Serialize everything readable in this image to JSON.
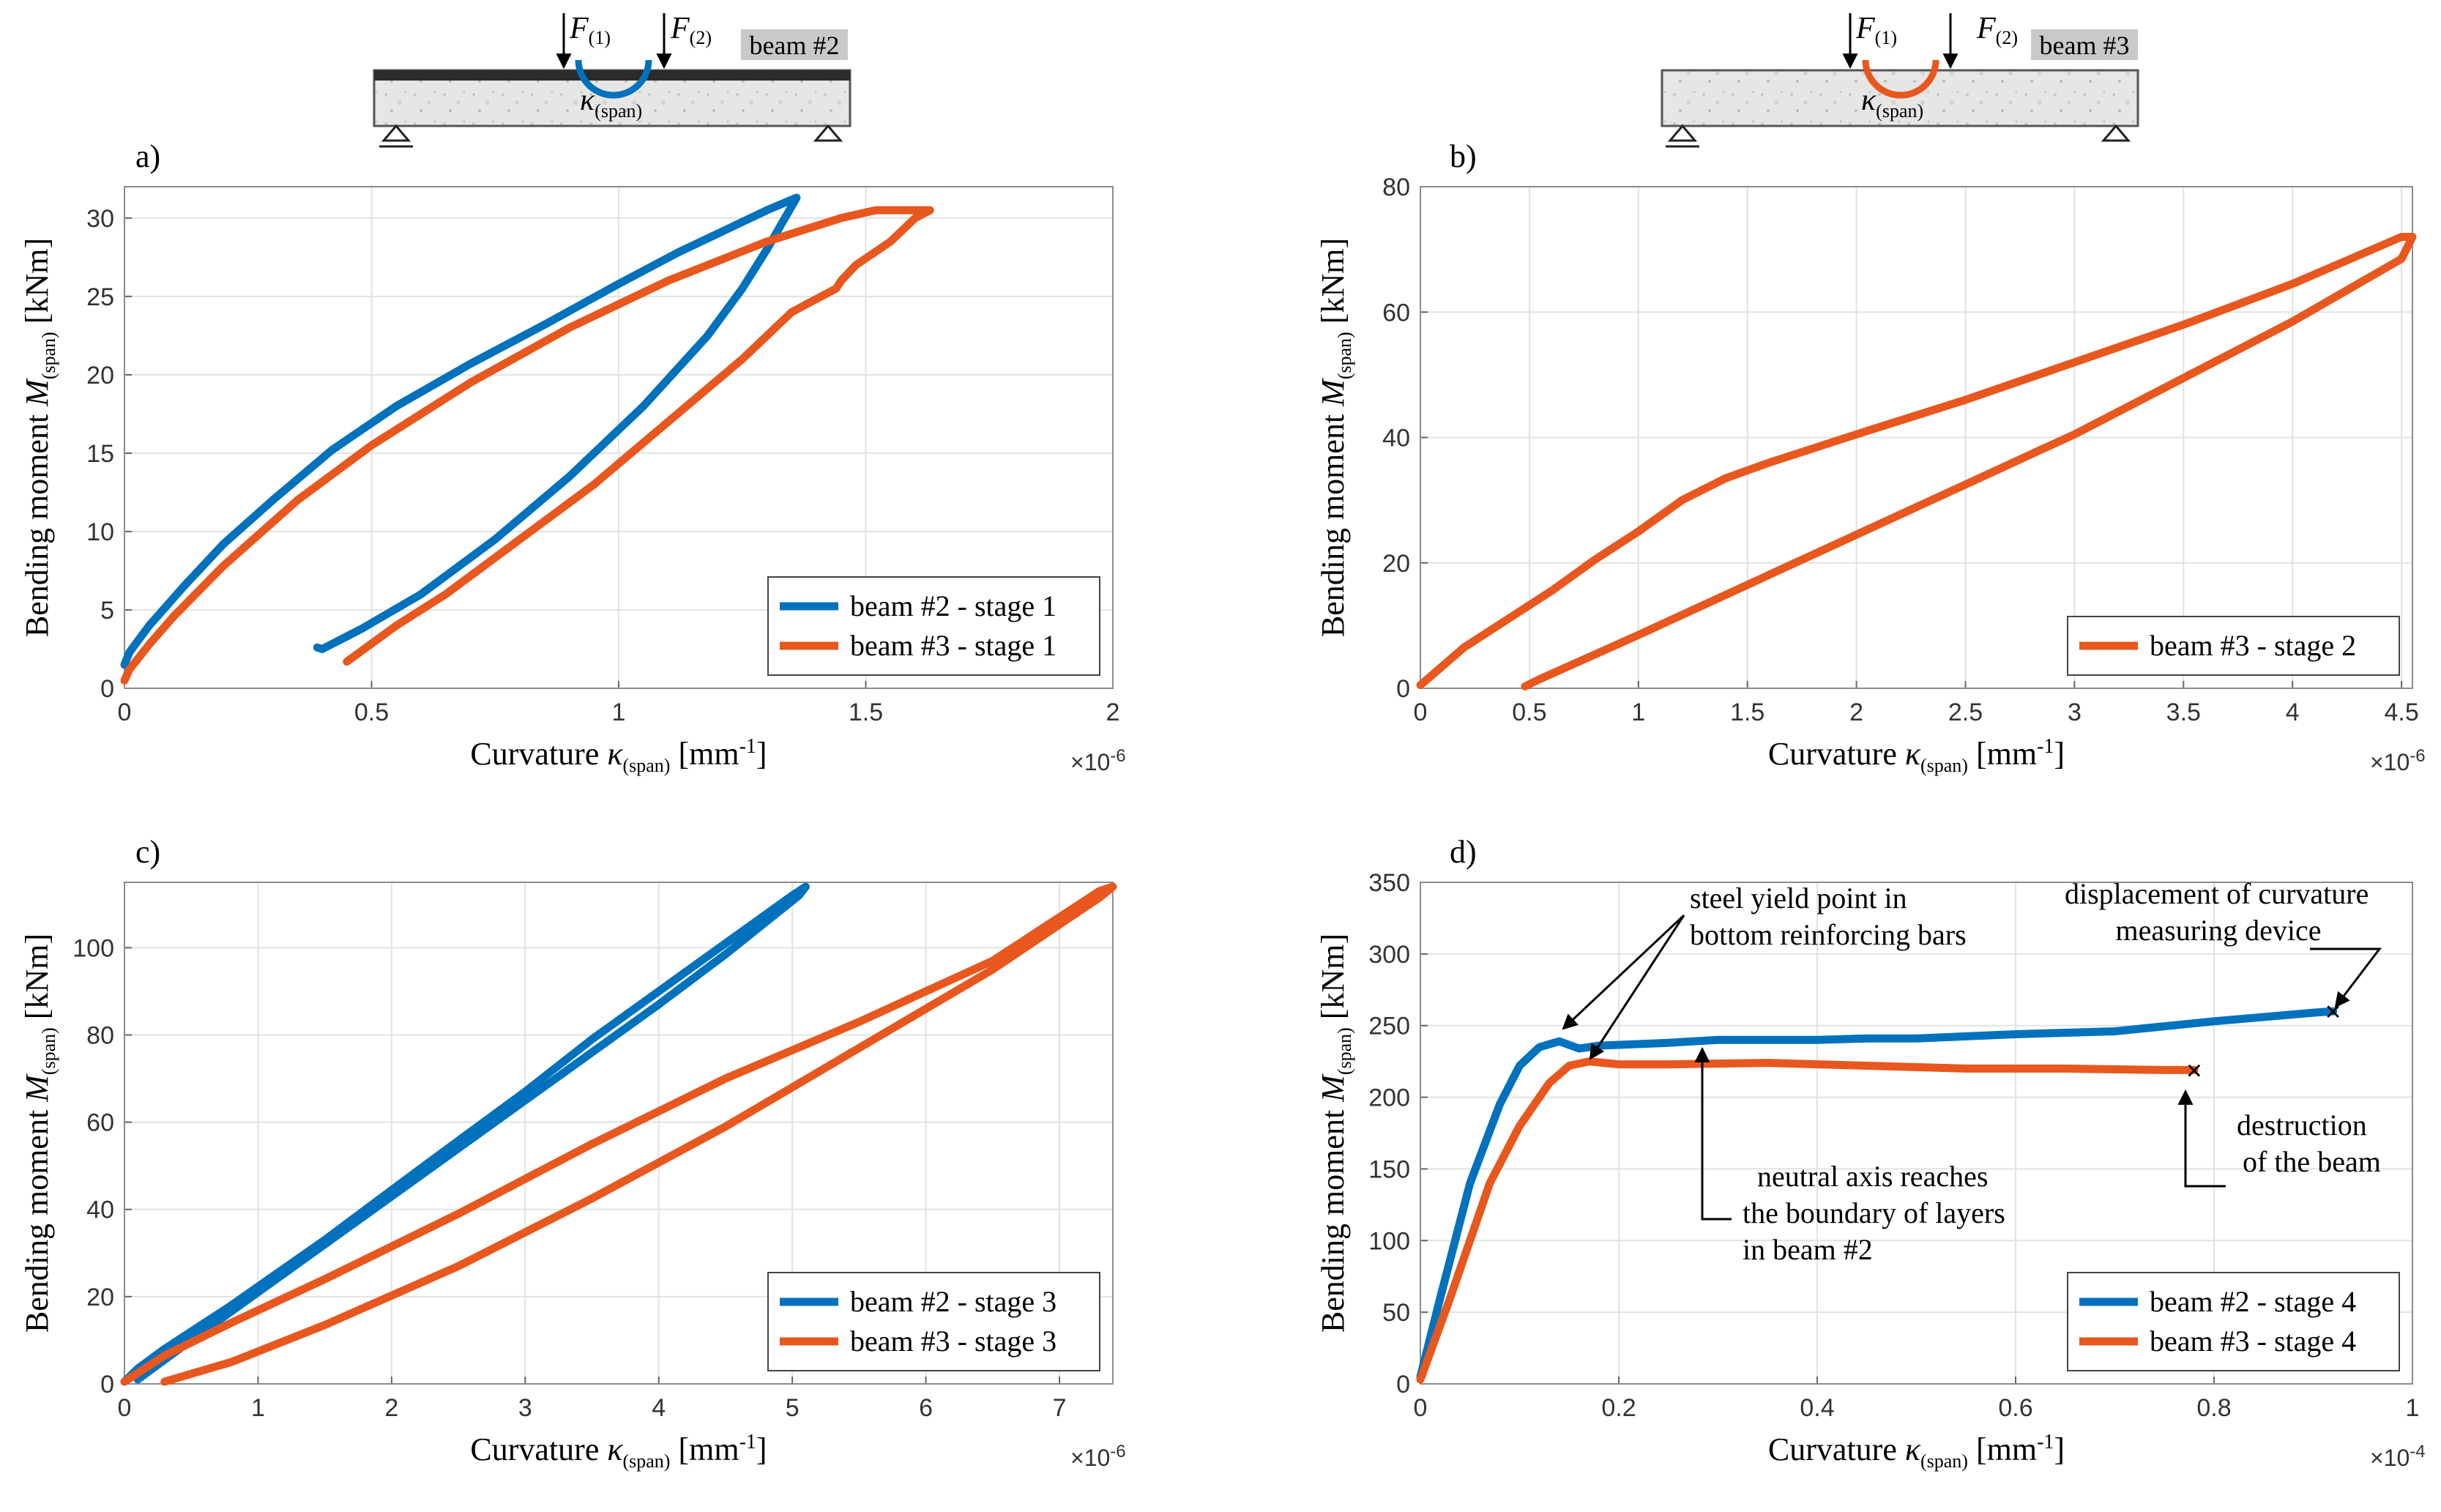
{
  "figure": {
    "beam_schematics": [
      {
        "label": "beam #2",
        "force1": "F",
        "force1_sub": "(1)",
        "force2": "F",
        "force2_sub": "(2)",
        "curv": "κ",
        "curv_sub": "(span)",
        "color": "#0072BD"
      },
      {
        "label": "beam #3",
        "force1": "F",
        "force1_sub": "(1)",
        "force2": "F",
        "force2_sub": "(2)",
        "curv": "κ",
        "curv_sub": "(span)",
        "color": "#E8571E"
      }
    ],
    "axis_text": {
      "ylabel_main": "Bending moment ",
      "ylabel_sym": "M",
      "ylabel_sub": "(span)",
      "ylabel_unit": " [kNm]",
      "xlabel_main": "Curvature ",
      "xlabel_sym": "κ",
      "xlabel_sub": "(span)",
      "xlabel_unit": " [mm",
      "xlabel_exp": "-1",
      "xlabel_close": "]"
    }
  },
  "colors": {
    "beam2": "#0072BD",
    "beam3": "#E8571E"
  },
  "chart_data": [
    {
      "type": "line",
      "panel": "a)",
      "xlim": [
        0,
        2
      ],
      "ylim": [
        0,
        32
      ],
      "xticks": [
        0,
        0.5,
        1,
        1.5,
        2
      ],
      "xtick_labels": [
        "0",
        "0.5",
        "1",
        "1.5",
        "2"
      ],
      "yticks": [
        0,
        5,
        10,
        15,
        20,
        25,
        30
      ],
      "ytick_labels": [
        "0",
        "5",
        "10",
        "15",
        "20",
        "25",
        "30"
      ],
      "x_exponent": "×10",
      "x_exponent_power": "-6",
      "grid": true,
      "legend_location": "bottom-right",
      "series": [
        {
          "name": "beam #2 - stage 1",
          "color": "#0072BD",
          "x": [
            0.0,
            0.01,
            0.05,
            0.12,
            0.2,
            0.3,
            0.42,
            0.55,
            0.7,
            0.85,
            1.0,
            1.12,
            1.22,
            1.3,
            1.36,
            1.36,
            1.3,
            1.25,
            1.18,
            1.05,
            0.9,
            0.75,
            0.6,
            0.48,
            0.4,
            0.39
          ],
          "y": [
            1.5,
            2.3,
            4.0,
            6.5,
            9.2,
            12.0,
            15.2,
            18.0,
            20.7,
            23.2,
            25.8,
            27.8,
            29.3,
            30.5,
            31.3,
            31.3,
            28.0,
            25.5,
            22.5,
            18.0,
            13.5,
            9.5,
            6.0,
            3.8,
            2.5,
            2.6
          ]
        },
        {
          "name": "beam #3 - stage 1",
          "color": "#E8571E",
          "x": [
            0.0,
            0.01,
            0.05,
            0.1,
            0.2,
            0.35,
            0.5,
            0.7,
            0.9,
            1.1,
            1.3,
            1.45,
            1.52,
            1.63,
            1.6,
            1.55,
            1.48,
            1.45,
            1.44,
            1.38,
            1.35,
            1.25,
            1.1,
            0.95,
            0.8,
            0.65,
            0.55,
            0.45
          ],
          "y": [
            0.5,
            1.2,
            2.8,
            4.6,
            7.8,
            12.0,
            15.5,
            19.5,
            23.0,
            26.0,
            28.5,
            30.0,
            30.5,
            30.5,
            30.0,
            28.5,
            27.0,
            26.0,
            25.5,
            24.5,
            24.0,
            21.0,
            17.0,
            13.0,
            9.5,
            6.0,
            4.0,
            1.7
          ]
        }
      ]
    },
    {
      "type": "line",
      "panel": "b)",
      "xlim": [
        0,
        4.55
      ],
      "ylim": [
        0,
        80
      ],
      "xticks": [
        0,
        0.5,
        1,
        1.5,
        2,
        2.5,
        3,
        3.5,
        4,
        4.5
      ],
      "xtick_labels": [
        "0",
        "0.5",
        "1",
        "1.5",
        "2",
        "2.5",
        "3",
        "3.5",
        "4",
        "4.5"
      ],
      "yticks": [
        0,
        20,
        40,
        60,
        80
      ],
      "ytick_labels": [
        "0",
        "20",
        "40",
        "60",
        "80"
      ],
      "x_exponent": "×10",
      "x_exponent_power": "-6",
      "grid": true,
      "legend_location": "bottom-right",
      "series": [
        {
          "name": "beam #3 - stage 2",
          "color": "#E8571E",
          "x": [
            0.0,
            0.05,
            0.2,
            0.4,
            0.6,
            0.8,
            1.0,
            1.2,
            1.4,
            1.6,
            2.0,
            2.5,
            3.0,
            3.5,
            4.0,
            4.5,
            4.55,
            4.5,
            4.0,
            3.5,
            3.0,
            2.5,
            2.0,
            1.5,
            1.0,
            0.55,
            0.48
          ],
          "y": [
            0.5,
            2.0,
            6.5,
            11.0,
            15.5,
            20.5,
            25.0,
            30.0,
            33.5,
            36.0,
            40.5,
            46.0,
            52.0,
            58.0,
            64.5,
            72.0,
            72.0,
            68.5,
            58.5,
            49.5,
            40.5,
            32.5,
            24.5,
            16.5,
            8.5,
            1.5,
            0.3
          ]
        }
      ]
    },
    {
      "type": "line",
      "panel": "c)",
      "xlim": [
        0,
        7.4
      ],
      "ylim": [
        0,
        115
      ],
      "xticks": [
        0,
        1,
        2,
        3,
        4,
        5,
        6,
        7
      ],
      "xtick_labels": [
        "0",
        "1",
        "2",
        "3",
        "4",
        "5",
        "6",
        "7"
      ],
      "yticks": [
        0,
        20,
        40,
        60,
        80,
        100
      ],
      "ytick_labels": [
        "0",
        "20",
        "40",
        "60",
        "80",
        "100"
      ],
      "x_exponent": "×10",
      "x_exponent_power": "-6",
      "grid": true,
      "legend_location": "bottom-right",
      "series": [
        {
          "name": "beam #2 - stage 3",
          "color": "#0072BD",
          "x": [
            0.0,
            0.1,
            0.3,
            0.8,
            1.5,
            2.2,
            3.0,
            3.5,
            4.0,
            4.5,
            5.0,
            5.1,
            5.05,
            4.5,
            4.0,
            3.0,
            2.0,
            1.0,
            0.5,
            0.1
          ],
          "y": [
            0.5,
            3.5,
            8.0,
            18.0,
            33.0,
            49.0,
            67.0,
            79.0,
            90.0,
            101.0,
            112.0,
            114.0,
            112.0,
            98.5,
            87.0,
            65.0,
            43.0,
            21.0,
            10.0,
            1.0
          ]
        },
        {
          "name": "beam #3 - stage 3",
          "color": "#E8571E",
          "x": [
            0.0,
            0.3,
            0.8,
            1.5,
            2.5,
            3.5,
            4.5,
            5.5,
            6.5,
            7.3,
            7.4,
            7.3,
            6.5,
            5.5,
            4.5,
            3.5,
            2.5,
            1.5,
            0.8,
            0.3
          ],
          "y": [
            0.5,
            6.5,
            14.0,
            24.0,
            39.0,
            55.0,
            70.0,
            83.0,
            97.0,
            113.0,
            114.0,
            111.5,
            95.0,
            77.0,
            59.0,
            42.5,
            27.0,
            13.5,
            5.0,
            0.5
          ]
        }
      ]
    },
    {
      "type": "line",
      "panel": "d)",
      "xlim": [
        0,
        1
      ],
      "ylim": [
        0,
        350
      ],
      "xticks": [
        0,
        0.2,
        0.4,
        0.6,
        0.8,
        1
      ],
      "xtick_labels": [
        "0",
        "0.2",
        "0.4",
        "0.6",
        "0.8",
        "1"
      ],
      "yticks": [
        0,
        50,
        100,
        150,
        200,
        250,
        300,
        350
      ],
      "ytick_labels": [
        "0",
        "50",
        "100",
        "150",
        "200",
        "250",
        "300",
        "350"
      ],
      "x_exponent": "×10",
      "x_exponent_power": "-4",
      "grid": true,
      "legend_location": "bottom-right",
      "series": [
        {
          "name": "beam #2 - stage 4",
          "color": "#0072BD",
          "x": [
            0.0,
            0.02,
            0.05,
            0.08,
            0.1,
            0.12,
            0.14,
            0.16,
            0.18,
            0.25,
            0.3,
            0.4,
            0.45,
            0.5,
            0.6,
            0.7,
            0.8,
            0.9,
            0.92
          ],
          "y": [
            5,
            60,
            140,
            195,
            222,
            235,
            239,
            234,
            236,
            238,
            240,
            240,
            241,
            241,
            244,
            246,
            253,
            259,
            260
          ]
        },
        {
          "name": "beam #3 - stage 4",
          "color": "#E8571E",
          "x": [
            0.0,
            0.03,
            0.07,
            0.1,
            0.13,
            0.15,
            0.17,
            0.2,
            0.25,
            0.35,
            0.45,
            0.55,
            0.65,
            0.75,
            0.78
          ],
          "y": [
            3,
            60,
            140,
            180,
            210,
            222,
            225,
            223,
            223,
            224,
            222,
            220,
            220,
            219,
            219
          ]
        }
      ],
      "markers": [
        {
          "series": "beam #2 - stage 4",
          "x": 0.92,
          "y": 260,
          "symbol": "×"
        },
        {
          "series": "beam #3 - stage 4",
          "x": 0.78,
          "y": 219,
          "symbol": "×"
        }
      ],
      "annotations": [
        {
          "lines": [
            "steel yield point in",
            "bottom reinforcing bars"
          ]
        },
        {
          "lines": [
            "displacement of curvature",
            "measuring device"
          ]
        },
        {
          "lines": [
            "destruction",
            "of the beam"
          ]
        },
        {
          "lines": [
            "neutral axis reaches",
            "the boundary of layers",
            "in beam #2"
          ]
        }
      ]
    }
  ]
}
